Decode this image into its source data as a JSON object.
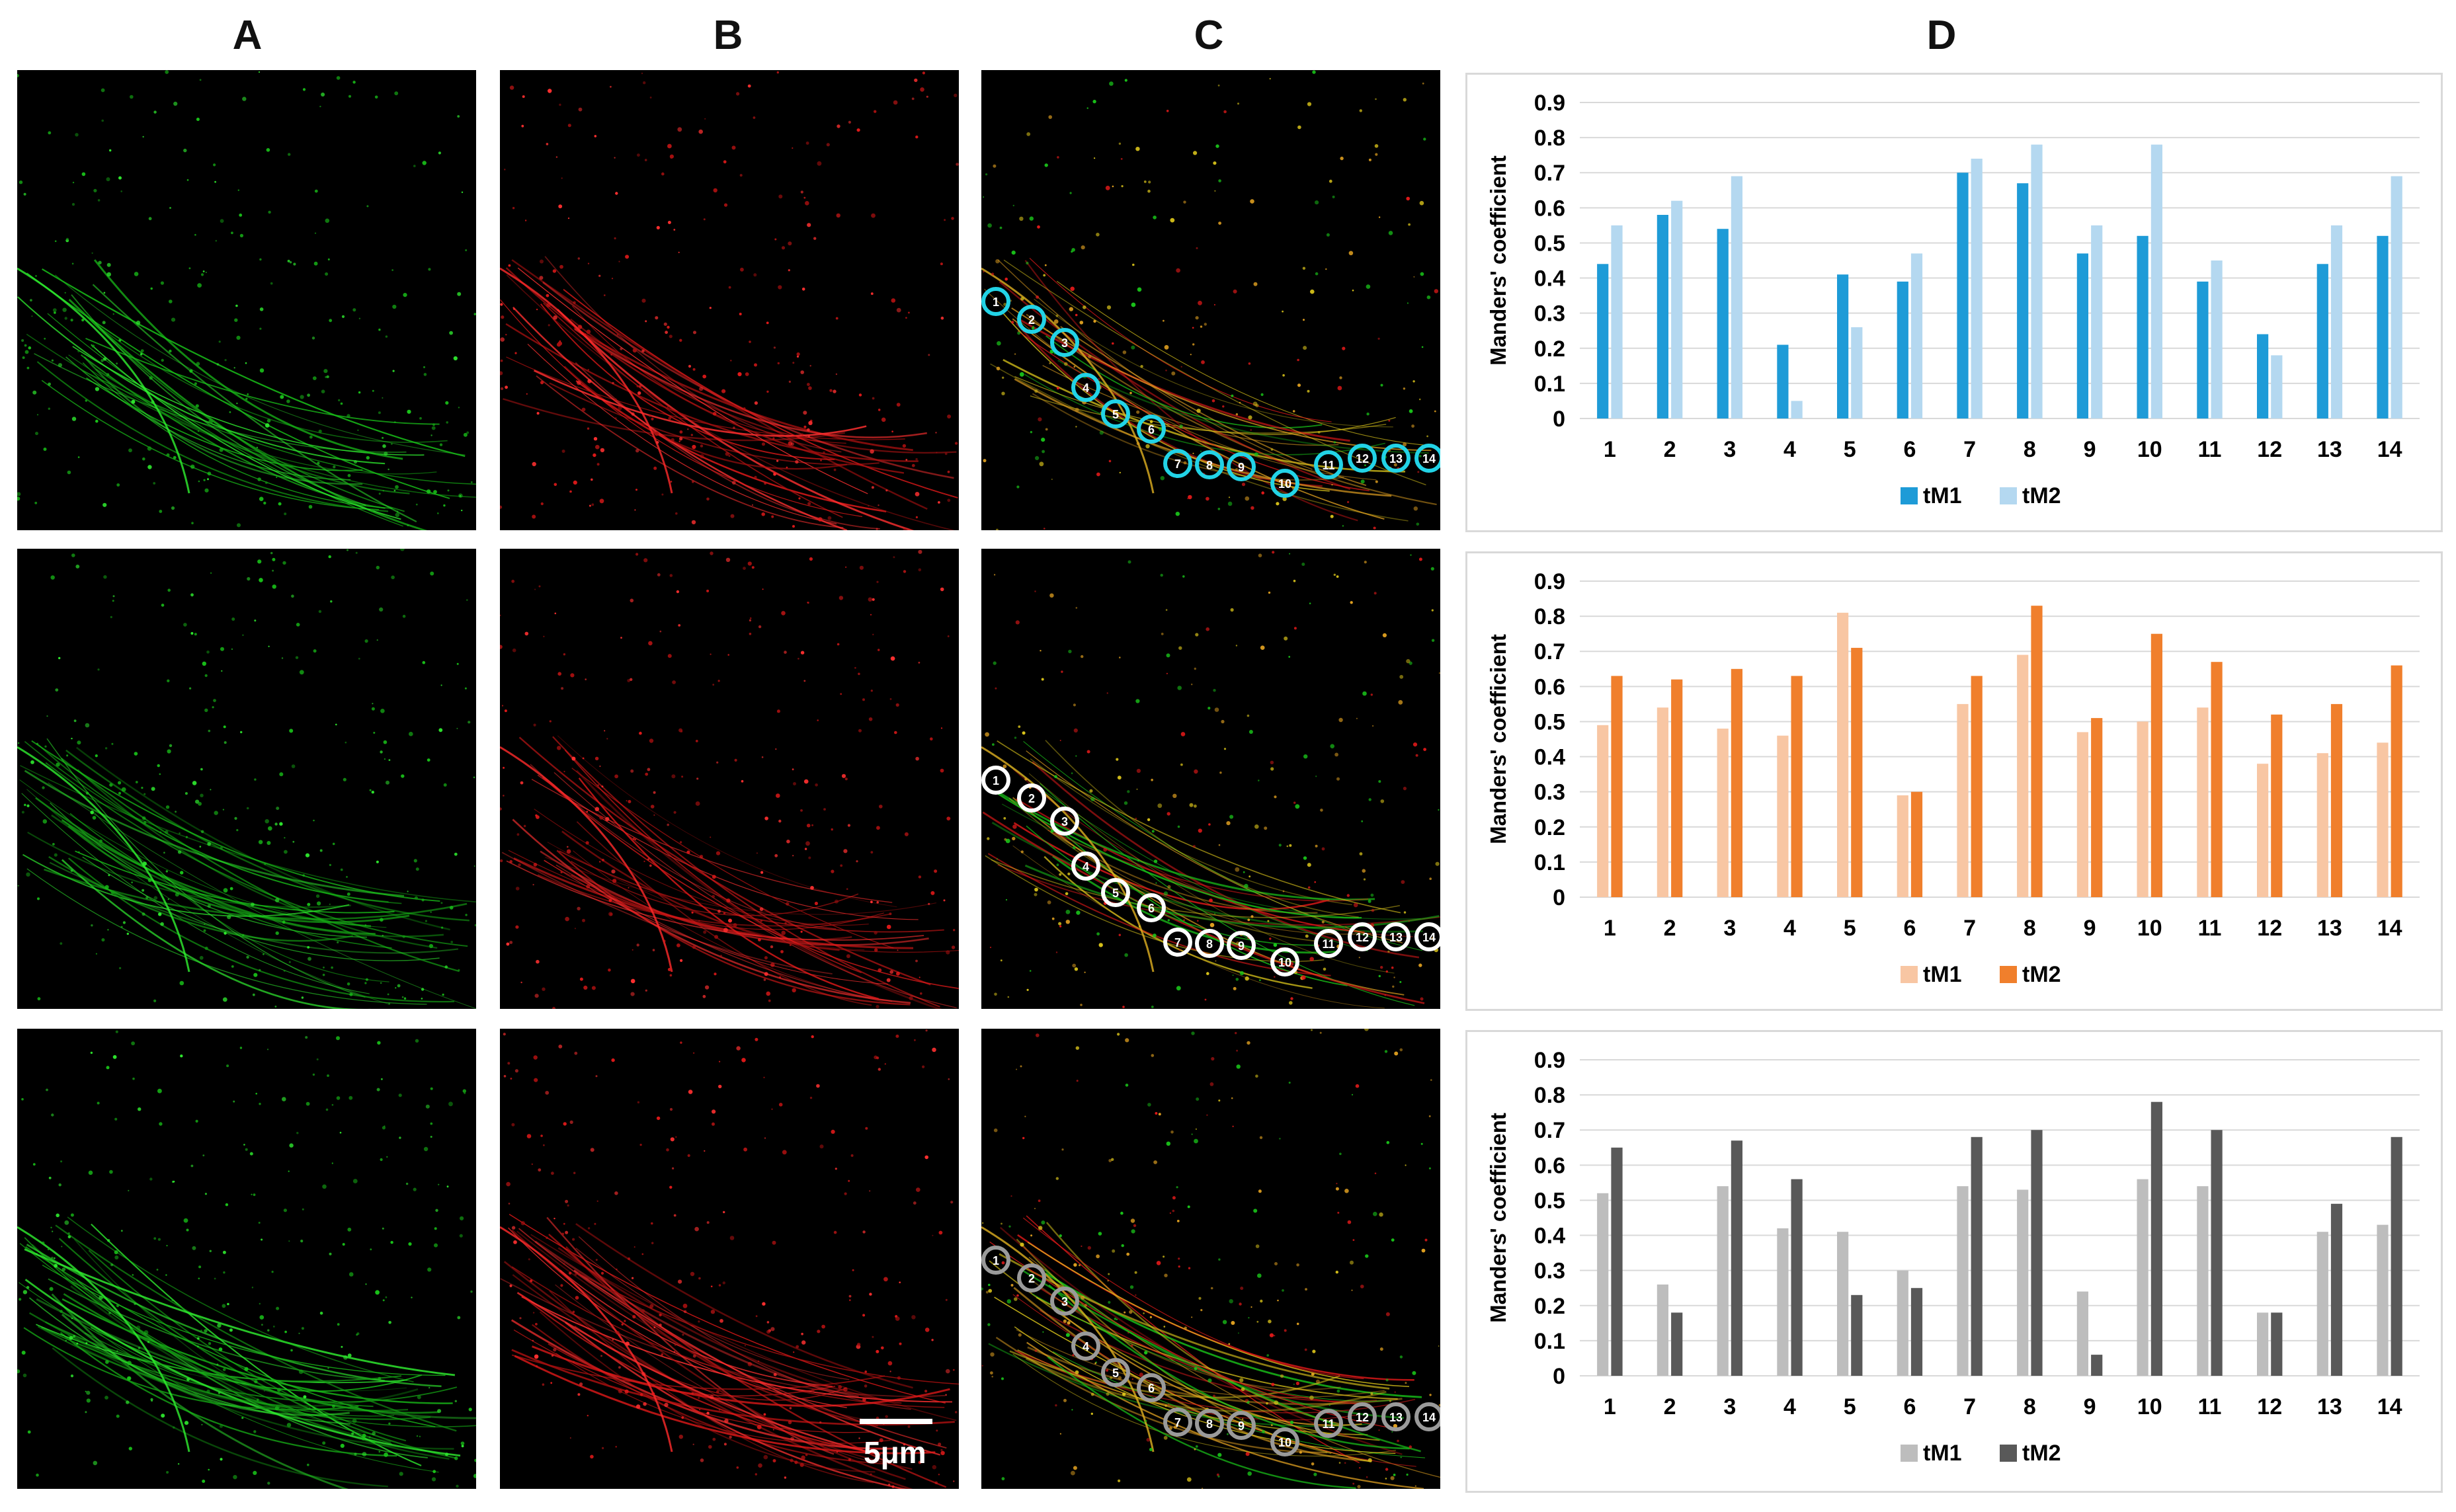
{
  "panels": {
    "A": "A",
    "B": "B",
    "C": "C",
    "D": "D"
  },
  "scale_bar": {
    "label": "5μm"
  },
  "roi_labels": [
    "1",
    "2",
    "3",
    "4",
    "5",
    "6",
    "7",
    "8",
    "9",
    "10",
    "11",
    "12",
    "13",
    "14"
  ],
  "roi_colors": [
    "#22d3e6",
    "#ffffff",
    "#9a9a9a"
  ],
  "chart_data": [
    {
      "type": "bar",
      "ylabel": "Manders' coefficient",
      "xlabel": "",
      "ylim": [
        0,
        0.9
      ],
      "yticks": [
        "0",
        "0.1",
        "0.2",
        "0.3",
        "0.4",
        "0.5",
        "0.6",
        "0.7",
        "0.8",
        "0.9"
      ],
      "categories": [
        "1",
        "2",
        "3",
        "4",
        "5",
        "6",
        "7",
        "8",
        "9",
        "10",
        "11",
        "12",
        "13",
        "14"
      ],
      "legend_position": "bottom",
      "series": [
        {
          "name": "tM1",
          "color": "#1e9bd7",
          "values": [
            0.44,
            0.58,
            0.54,
            0.21,
            0.41,
            0.39,
            0.7,
            0.67,
            0.47,
            0.52,
            0.39,
            0.24,
            0.44,
            0.52
          ]
        },
        {
          "name": "tM2",
          "color": "#b4d8f0",
          "values": [
            0.55,
            0.62,
            0.69,
            0.05,
            0.26,
            0.47,
            0.74,
            0.78,
            0.55,
            0.78,
            0.45,
            0.18,
            0.55,
            0.69
          ]
        }
      ]
    },
    {
      "type": "bar",
      "ylabel": "Manders' coefficient",
      "xlabel": "",
      "ylim": [
        0,
        0.9
      ],
      "yticks": [
        "0",
        "0.1",
        "0.2",
        "0.3",
        "0.4",
        "0.5",
        "0.6",
        "0.7",
        "0.8",
        "0.9"
      ],
      "categories": [
        "1",
        "2",
        "3",
        "4",
        "5",
        "6",
        "7",
        "8",
        "9",
        "10",
        "11",
        "12",
        "13",
        "14"
      ],
      "legend_position": "bottom",
      "series": [
        {
          "name": "tM1",
          "color": "#f8c6a3",
          "values": [
            0.49,
            0.54,
            0.48,
            0.46,
            0.81,
            0.29,
            0.55,
            0.69,
            0.47,
            0.5,
            0.54,
            0.38,
            0.41,
            0.44
          ]
        },
        {
          "name": "tM2",
          "color": "#f07f2c",
          "values": [
            0.63,
            0.62,
            0.65,
            0.63,
            0.71,
            0.3,
            0.63,
            0.83,
            0.51,
            0.75,
            0.67,
            0.52,
            0.55,
            0.66
          ]
        }
      ]
    },
    {
      "type": "bar",
      "ylabel": "Manders' coefficient",
      "xlabel": "",
      "ylim": [
        0,
        0.9
      ],
      "yticks": [
        "0",
        "0.1",
        "0.2",
        "0.3",
        "0.4",
        "0.5",
        "0.6",
        "0.7",
        "0.8",
        "0.9"
      ],
      "categories": [
        "1",
        "2",
        "3",
        "4",
        "5",
        "6",
        "7",
        "8",
        "9",
        "10",
        "11",
        "12",
        "13",
        "14"
      ],
      "legend_position": "bottom",
      "series": [
        {
          "name": "tM1",
          "color": "#bdbdbd",
          "values": [
            0.52,
            0.26,
            0.54,
            0.42,
            0.41,
            0.3,
            0.54,
            0.53,
            0.24,
            0.56,
            0.54,
            0.18,
            0.41,
            0.43
          ]
        },
        {
          "name": "tM2",
          "color": "#595959",
          "values": [
            0.65,
            0.18,
            0.67,
            0.56,
            0.23,
            0.25,
            0.68,
            0.7,
            0.06,
            0.78,
            0.7,
            0.18,
            0.49,
            0.68
          ]
        }
      ]
    }
  ]
}
